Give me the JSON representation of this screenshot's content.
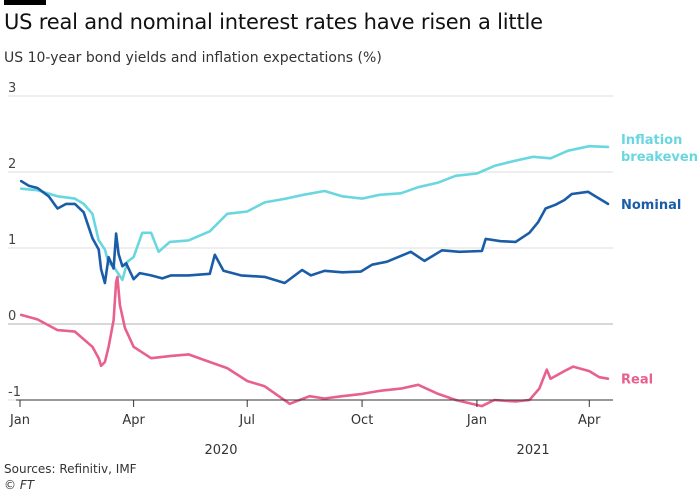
{
  "header": {
    "title": "US real and nominal interest rates have risen a little",
    "subtitle": "US 10-year bond yields and inflation expectations (%)"
  },
  "footer": {
    "source": "Sources: Refinitiv, IMF",
    "copyright": "© FT"
  },
  "colors": {
    "inflation": "#6ad7e0",
    "nominal": "#1a5da6",
    "real": "#e8608e",
    "grid": "#dddddd",
    "zero_line": "#b0b0b0"
  },
  "chart_data": {
    "type": "line",
    "title": "US real and nominal interest rates have risen a little",
    "subtitle": "US 10-year bond yields and inflation expectations (%)",
    "ylim": [
      -1,
      3
    ],
    "y_ticks": [
      "3",
      "2",
      "1",
      "0",
      "-1"
    ],
    "grid": true,
    "x_range": [
      "2020-01-01",
      "2021-04-20"
    ],
    "x_ticks": [
      {
        "label": "Jan",
        "date": "2020-01-01"
      },
      {
        "label": "Apr",
        "date": "2020-04-01"
      },
      {
        "label": "Jul",
        "date": "2020-07-01"
      },
      {
        "label": "Oct",
        "date": "2020-10-01"
      },
      {
        "label": "Jan",
        "date": "2021-01-01"
      },
      {
        "label": "Apr",
        "date": "2021-04-01"
      }
    ],
    "year_labels": [
      {
        "label": "2020",
        "date": "2020-06-10"
      },
      {
        "label": "2021",
        "date": "2021-02-15"
      }
    ],
    "series": [
      {
        "name": "Inflation breakeven",
        "label_lines": [
          "Inflation",
          "breakeven"
        ],
        "color_key": "inflation",
        "points": [
          [
            "2020-01-02",
            1.78
          ],
          [
            "2020-01-15",
            1.76
          ],
          [
            "2020-01-31",
            1.68
          ],
          [
            "2020-02-14",
            1.65
          ],
          [
            "2020-02-21",
            1.58
          ],
          [
            "2020-02-28",
            1.45
          ],
          [
            "2020-03-04",
            1.1
          ],
          [
            "2020-03-09",
            0.98
          ],
          [
            "2020-03-12",
            0.8
          ],
          [
            "2020-03-16",
            0.76
          ],
          [
            "2020-03-19",
            0.68
          ],
          [
            "2020-03-23",
            0.58
          ],
          [
            "2020-03-27",
            0.82
          ],
          [
            "2020-04-01",
            0.88
          ],
          [
            "2020-04-08",
            1.2
          ],
          [
            "2020-04-15",
            1.2
          ],
          [
            "2020-04-21",
            0.95
          ],
          [
            "2020-04-30",
            1.08
          ],
          [
            "2020-05-15",
            1.1
          ],
          [
            "2020-06-01",
            1.22
          ],
          [
            "2020-06-15",
            1.45
          ],
          [
            "2020-07-01",
            1.48
          ],
          [
            "2020-07-15",
            1.6
          ],
          [
            "2020-08-01",
            1.65
          ],
          [
            "2020-08-15",
            1.7
          ],
          [
            "2020-09-01",
            1.75
          ],
          [
            "2020-09-15",
            1.68
          ],
          [
            "2020-10-01",
            1.65
          ],
          [
            "2020-10-15",
            1.7
          ],
          [
            "2020-11-01",
            1.72
          ],
          [
            "2020-11-15",
            1.8
          ],
          [
            "2020-12-01",
            1.86
          ],
          [
            "2020-12-15",
            1.95
          ],
          [
            "2021-01-01",
            1.98
          ],
          [
            "2021-01-15",
            2.08
          ],
          [
            "2021-02-01",
            2.15
          ],
          [
            "2021-02-15",
            2.2
          ],
          [
            "2021-03-01",
            2.18
          ],
          [
            "2021-03-15",
            2.28
          ],
          [
            "2021-04-01",
            2.34
          ],
          [
            "2021-04-16",
            2.33
          ]
        ]
      },
      {
        "name": "Nominal",
        "label_lines": [
          "Nominal"
        ],
        "color_key": "nominal",
        "points": [
          [
            "2020-01-02",
            1.88
          ],
          [
            "2020-01-08",
            1.82
          ],
          [
            "2020-01-15",
            1.79
          ],
          [
            "2020-01-24",
            1.68
          ],
          [
            "2020-01-31",
            1.52
          ],
          [
            "2020-02-07",
            1.58
          ],
          [
            "2020-02-14",
            1.58
          ],
          [
            "2020-02-21",
            1.47
          ],
          [
            "2020-02-28",
            1.13
          ],
          [
            "2020-03-04",
            0.98
          ],
          [
            "2020-03-06",
            0.72
          ],
          [
            "2020-03-09",
            0.54
          ],
          [
            "2020-03-12",
            0.88
          ],
          [
            "2020-03-16",
            0.73
          ],
          [
            "2020-03-18",
            1.19
          ],
          [
            "2020-03-20",
            0.92
          ],
          [
            "2020-03-23",
            0.76
          ],
          [
            "2020-03-26",
            0.8
          ],
          [
            "2020-04-01",
            0.59
          ],
          [
            "2020-04-06",
            0.67
          ],
          [
            "2020-04-15",
            0.64
          ],
          [
            "2020-04-24",
            0.6
          ],
          [
            "2020-05-01",
            0.64
          ],
          [
            "2020-05-15",
            0.64
          ],
          [
            "2020-06-01",
            0.66
          ],
          [
            "2020-06-05",
            0.91
          ],
          [
            "2020-06-12",
            0.7
          ],
          [
            "2020-06-26",
            0.64
          ],
          [
            "2020-07-15",
            0.62
          ],
          [
            "2020-07-31",
            0.54
          ],
          [
            "2020-08-14",
            0.71
          ],
          [
            "2020-08-21",
            0.64
          ],
          [
            "2020-09-01",
            0.7
          ],
          [
            "2020-09-15",
            0.68
          ],
          [
            "2020-09-30",
            0.69
          ],
          [
            "2020-10-09",
            0.78
          ],
          [
            "2020-10-21",
            0.82
          ],
          [
            "2020-11-09",
            0.95
          ],
          [
            "2020-11-20",
            0.83
          ],
          [
            "2020-12-04",
            0.97
          ],
          [
            "2020-12-18",
            0.95
          ],
          [
            "2021-01-05",
            0.96
          ],
          [
            "2021-01-08",
            1.12
          ],
          [
            "2021-01-20",
            1.09
          ],
          [
            "2021-02-01",
            1.08
          ],
          [
            "2021-02-12",
            1.2
          ],
          [
            "2021-02-19",
            1.34
          ],
          [
            "2021-02-25",
            1.52
          ],
          [
            "2021-03-05",
            1.57
          ],
          [
            "2021-03-12",
            1.63
          ],
          [
            "2021-03-18",
            1.71
          ],
          [
            "2021-03-31",
            1.74
          ],
          [
            "2021-04-05",
            1.69
          ],
          [
            "2021-04-12",
            1.62
          ],
          [
            "2021-04-16",
            1.58
          ]
        ]
      },
      {
        "name": "Real",
        "label_lines": [
          "Real"
        ],
        "color_key": "real",
        "points": [
          [
            "2020-01-02",
            0.12
          ],
          [
            "2020-01-15",
            0.06
          ],
          [
            "2020-01-31",
            -0.08
          ],
          [
            "2020-02-14",
            -0.1
          ],
          [
            "2020-02-28",
            -0.3
          ],
          [
            "2020-03-04",
            -0.45
          ],
          [
            "2020-03-06",
            -0.55
          ],
          [
            "2020-03-09",
            -0.5
          ],
          [
            "2020-03-12",
            -0.3
          ],
          [
            "2020-03-16",
            0.05
          ],
          [
            "2020-03-18",
            0.55
          ],
          [
            "2020-03-19",
            0.62
          ],
          [
            "2020-03-21",
            0.25
          ],
          [
            "2020-03-25",
            -0.05
          ],
          [
            "2020-04-01",
            -0.3
          ],
          [
            "2020-04-15",
            -0.45
          ],
          [
            "2020-05-01",
            -0.42
          ],
          [
            "2020-05-15",
            -0.4
          ],
          [
            "2020-06-01",
            -0.5
          ],
          [
            "2020-06-15",
            -0.58
          ],
          [
            "2020-07-01",
            -0.75
          ],
          [
            "2020-07-15",
            -0.82
          ],
          [
            "2020-08-04",
            -1.05
          ],
          [
            "2020-08-20",
            -0.95
          ],
          [
            "2020-09-01",
            -0.98
          ],
          [
            "2020-09-15",
            -0.95
          ],
          [
            "2020-10-01",
            -0.92
          ],
          [
            "2020-10-15",
            -0.88
          ],
          [
            "2020-11-01",
            -0.85
          ],
          [
            "2020-11-15",
            -0.8
          ],
          [
            "2020-12-01",
            -0.92
          ],
          [
            "2020-12-15",
            -1.0
          ],
          [
            "2021-01-05",
            -1.08
          ],
          [
            "2021-01-15",
            -1.0
          ],
          [
            "2021-02-01",
            -1.02
          ],
          [
            "2021-02-12",
            -1.0
          ],
          [
            "2021-02-20",
            -0.85
          ],
          [
            "2021-02-26",
            -0.6
          ],
          [
            "2021-03-01",
            -0.72
          ],
          [
            "2021-03-12",
            -0.62
          ],
          [
            "2021-03-19",
            -0.56
          ],
          [
            "2021-04-01",
            -0.62
          ],
          [
            "2021-04-09",
            -0.7
          ],
          [
            "2021-04-16",
            -0.72
          ]
        ]
      }
    ]
  }
}
